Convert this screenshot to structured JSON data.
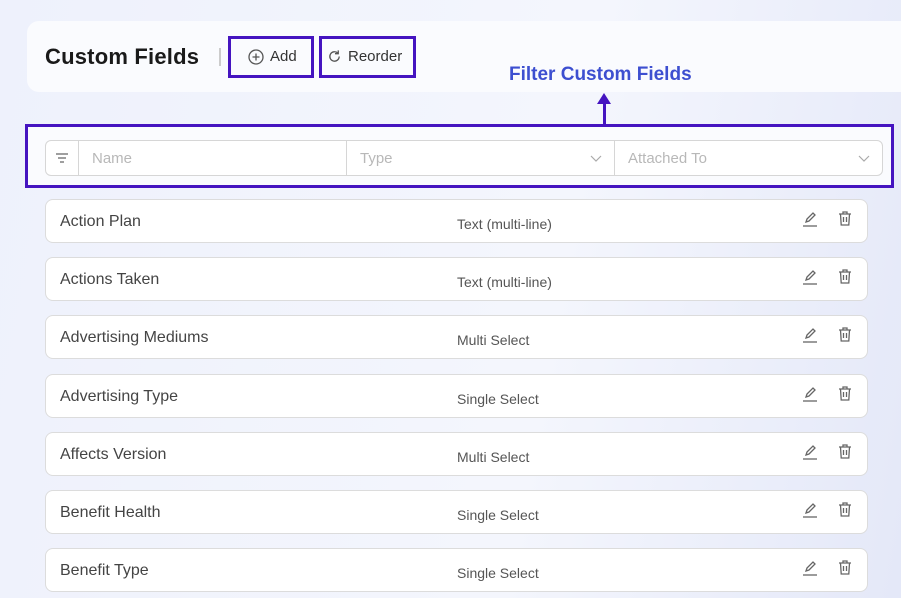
{
  "header": {
    "title": "Custom Fields",
    "add_label": "Add",
    "reorder_label": "Reorder"
  },
  "annotation": {
    "text": "Filter Custom Fields",
    "color": "#3d4fd0",
    "highlight_color": "#4514c0"
  },
  "filters": {
    "name_placeholder": "Name",
    "type_placeholder": "Type",
    "attached_placeholder": "Attached To"
  },
  "rows": [
    {
      "name": "Action Plan",
      "type": "Text (multi-line)"
    },
    {
      "name": "Actions Taken",
      "type": "Text (multi-line)"
    },
    {
      "name": "Advertising Mediums",
      "type": "Multi Select"
    },
    {
      "name": "Advertising Type",
      "type": "Single Select"
    },
    {
      "name": "Affects Version",
      "type": "Multi Select"
    },
    {
      "name": "Benefit Health",
      "type": "Single Select"
    },
    {
      "name": "Benefit Type",
      "type": "Single Select"
    }
  ]
}
